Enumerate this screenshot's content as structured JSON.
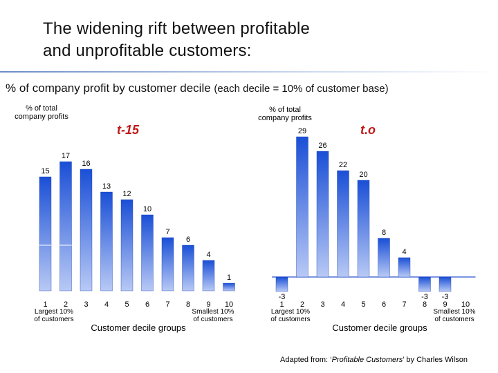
{
  "title": {
    "line1": "The widening rift between profitable",
    "line2": "and unprofitable customers:"
  },
  "subtitle": {
    "main": "% of company profit by customer decile",
    "note": "(each decile = 10% of customer base)"
  },
  "footnote": {
    "prefix": "Adapted from: ‘",
    "book": "Profitable Customers",
    "suffix": "’ by Charles Wilson"
  },
  "colors": {
    "bar_top": "#1a4fd6",
    "bar_bottom": "#b8c9f5",
    "title_rule": "#6b8cc6"
  },
  "chart_data": [
    {
      "type": "bar",
      "title": "t-15",
      "ylabel": "% of total company profits",
      "xlabel": "Customer decile groups",
      "categories": [
        "1",
        "2",
        "3",
        "4",
        "5",
        "6",
        "7",
        "8",
        "9",
        "10"
      ],
      "category_notes": {
        "2": "Largest 10% of customers",
        "10": "Smallest 10% of customers"
      },
      "values": [
        15,
        17,
        16,
        13,
        12,
        10,
        7,
        6,
        4,
        1
      ],
      "ylim": [
        0,
        30
      ],
      "grid": false
    },
    {
      "type": "bar",
      "title": "t.o",
      "ylabel": "% of total company profits",
      "xlabel": "Customer decile groups",
      "categories": [
        "1",
        "2",
        "3",
        "4",
        "5",
        "6",
        "7",
        "8",
        "9",
        "10"
      ],
      "category_notes": {
        "2": "Largest 10% of customers",
        "9": "Smallest 10% of customers"
      },
      "values": [
        -3,
        29,
        26,
        22,
        20,
        8,
        4,
        -3,
        -3,
        null
      ],
      "ylim": [
        -5,
        30
      ],
      "grid": false
    }
  ]
}
